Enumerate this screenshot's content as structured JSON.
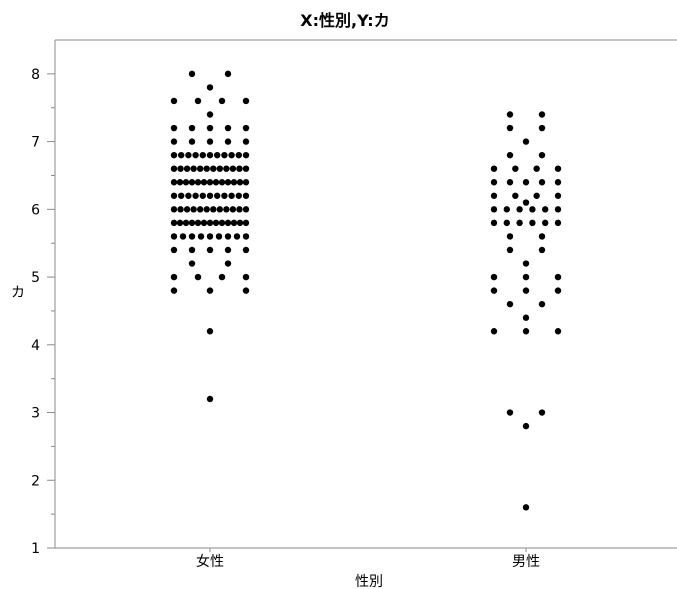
{
  "chart_data": {
    "type": "scatter",
    "title": "X:性別,Y:カ",
    "xlabel": "性別",
    "ylabel": "カ",
    "categories": [
      "女性",
      "男性"
    ],
    "ylim": [
      1,
      8.5
    ],
    "y_ticks": [
      1,
      2,
      3,
      4,
      5,
      6,
      7,
      8
    ],
    "grid": false,
    "series": [
      {
        "category": "女性",
        "values": [
          8.0,
          8.0,
          7.8,
          7.6,
          7.6,
          7.6,
          7.6,
          7.4,
          7.2,
          7.2,
          7.2,
          7.2,
          7.2,
          7.0,
          7.0,
          7.0,
          7.0,
          7.0,
          6.8,
          6.8,
          6.8,
          6.8,
          6.8,
          6.8,
          6.8,
          6.8,
          6.8,
          6.8,
          6.8,
          6.6,
          6.6,
          6.6,
          6.6,
          6.6,
          6.6,
          6.6,
          6.6,
          6.6,
          6.6,
          6.6,
          6.6,
          6.4,
          6.4,
          6.4,
          6.4,
          6.4,
          6.4,
          6.4,
          6.4,
          6.4,
          6.4,
          6.4,
          6.4,
          6.4,
          6.2,
          6.2,
          6.2,
          6.2,
          6.2,
          6.2,
          6.2,
          6.2,
          6.2,
          6.2,
          6.2,
          6.0,
          6.0,
          6.0,
          6.0,
          6.0,
          6.0,
          6.0,
          6.0,
          6.0,
          6.0,
          6.0,
          6.0,
          5.8,
          5.8,
          5.8,
          5.8,
          5.8,
          5.8,
          5.8,
          5.8,
          5.8,
          5.8,
          5.8,
          5.8,
          5.8,
          5.6,
          5.6,
          5.6,
          5.6,
          5.6,
          5.6,
          5.6,
          5.6,
          5.6,
          5.4,
          5.4,
          5.4,
          5.4,
          5.4,
          5.2,
          5.2,
          5.0,
          5.0,
          5.0,
          5.0,
          4.8,
          4.8,
          4.8,
          4.2,
          3.2
        ]
      },
      {
        "category": "男性",
        "values": [
          7.4,
          7.4,
          7.2,
          7.2,
          7.0,
          6.8,
          6.8,
          6.6,
          6.6,
          6.6,
          6.6,
          6.4,
          6.4,
          6.4,
          6.4,
          6.4,
          6.2,
          6.2,
          6.2,
          6.2,
          6.1,
          6.0,
          6.0,
          6.0,
          6.0,
          6.0,
          6.0,
          5.8,
          5.8,
          5.8,
          5.8,
          5.8,
          5.8,
          5.6,
          5.6,
          5.4,
          5.4,
          5.2,
          5.0,
          5.0,
          5.0,
          4.8,
          4.8,
          4.8,
          4.6,
          4.6,
          4.4,
          4.2,
          4.2,
          4.2,
          3.0,
          3.0,
          2.8,
          1.6
        ]
      }
    ]
  }
}
